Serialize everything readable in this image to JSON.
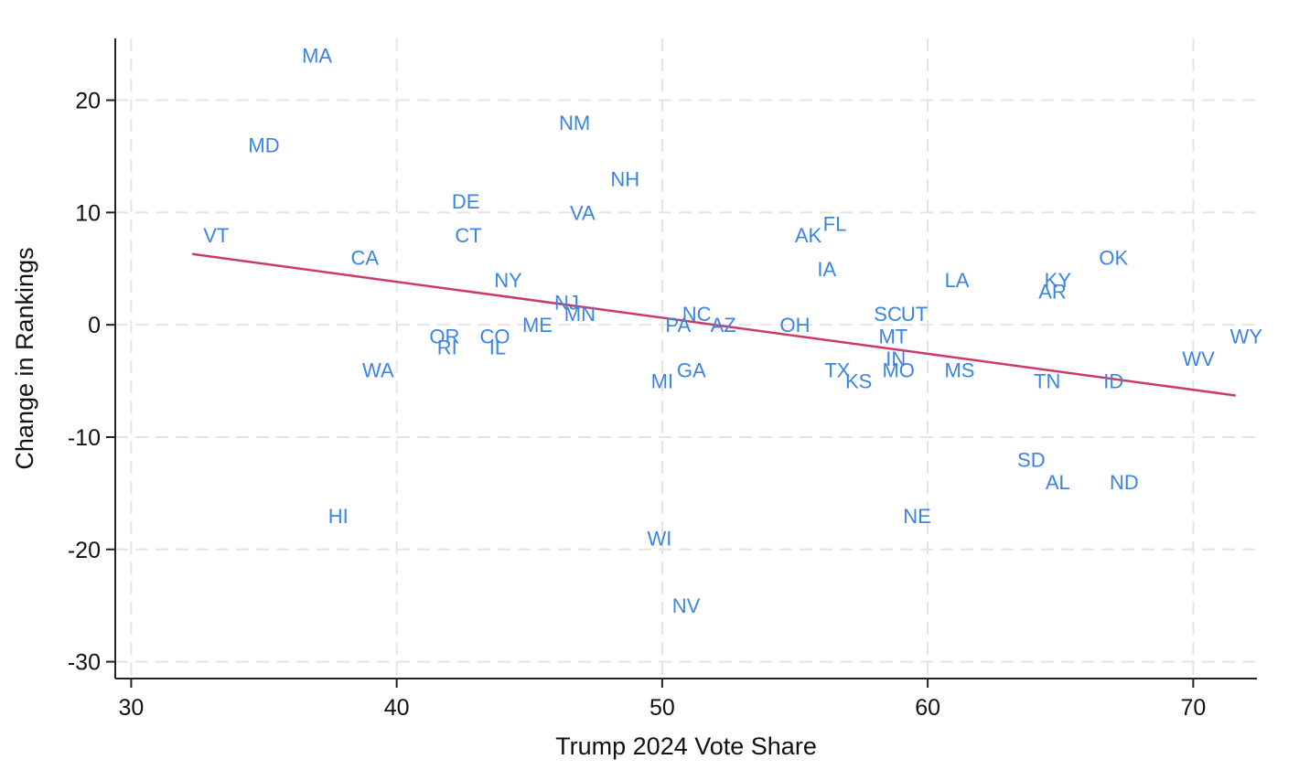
{
  "chart_data": {
    "type": "scatter",
    "xlabel": "Trump 2024 Vote Share",
    "ylabel": "Change in Rankings",
    "xlim": [
      29.4,
      72.4
    ],
    "ylim": [
      -31.5,
      25.5
    ],
    "xticks": [
      30,
      40,
      50,
      60,
      70
    ],
    "yticks": [
      20,
      10,
      0,
      -10,
      -20,
      -30
    ],
    "grid": true,
    "point_color": "#3b84e3",
    "fit_line_color": "#cc3a6a",
    "points": [
      {
        "label": "MA",
        "x": 37.0,
        "y": 24
      },
      {
        "label": "MD",
        "x": 35.0,
        "y": 16
      },
      {
        "label": "NM",
        "x": 46.7,
        "y": 18
      },
      {
        "label": "NH",
        "x": 48.6,
        "y": 13
      },
      {
        "label": "DE",
        "x": 42.6,
        "y": 11
      },
      {
        "label": "VA",
        "x": 47.0,
        "y": 10
      },
      {
        "label": "VT",
        "x": 33.2,
        "y": 8
      },
      {
        "label": "CT",
        "x": 42.7,
        "y": 8
      },
      {
        "label": "AK",
        "x": 55.5,
        "y": 8
      },
      {
        "label": "FL",
        "x": 56.5,
        "y": 9
      },
      {
        "label": "CA",
        "x": 38.8,
        "y": 6
      },
      {
        "label": "OK",
        "x": 67.0,
        "y": 6
      },
      {
        "label": "IA",
        "x": 56.2,
        "y": 5
      },
      {
        "label": "NY",
        "x": 44.2,
        "y": 4
      },
      {
        "label": "LA",
        "x": 61.1,
        "y": 4
      },
      {
        "label": "KY",
        "x": 64.9,
        "y": 4
      },
      {
        "label": "AR",
        "x": 64.7,
        "y": 3
      },
      {
        "label": "NJ",
        "x": 46.4,
        "y": 2
      },
      {
        "label": "MN",
        "x": 46.9,
        "y": 1
      },
      {
        "label": "NC",
        "x": 51.3,
        "y": 1
      },
      {
        "label": "SC",
        "x": 58.5,
        "y": 1
      },
      {
        "label": "UT",
        "x": 59.5,
        "y": 1
      },
      {
        "label": "ME",
        "x": 45.3,
        "y": 0
      },
      {
        "label": "PA",
        "x": 50.6,
        "y": 0
      },
      {
        "label": "AZ",
        "x": 52.3,
        "y": 0
      },
      {
        "label": "OH",
        "x": 55.0,
        "y": 0
      },
      {
        "label": "OR",
        "x": 41.8,
        "y": -1
      },
      {
        "label": "CO",
        "x": 43.7,
        "y": -1
      },
      {
        "label": "MT",
        "x": 58.7,
        "y": -1
      },
      {
        "label": "WY",
        "x": 72.0,
        "y": -1
      },
      {
        "label": "RI",
        "x": 41.9,
        "y": -2
      },
      {
        "label": "IL",
        "x": 43.8,
        "y": -2
      },
      {
        "label": "IN",
        "x": 58.8,
        "y": -3
      },
      {
        "label": "WV",
        "x": 70.2,
        "y": -3
      },
      {
        "label": "WA",
        "x": 39.3,
        "y": -4
      },
      {
        "label": "GA",
        "x": 51.1,
        "y": -4
      },
      {
        "label": "TX",
        "x": 56.6,
        "y": -4
      },
      {
        "label": "MO",
        "x": 58.9,
        "y": -4
      },
      {
        "label": "MS",
        "x": 61.2,
        "y": -4
      },
      {
        "label": "MI",
        "x": 50.0,
        "y": -5
      },
      {
        "label": "KS",
        "x": 57.4,
        "y": -5
      },
      {
        "label": "TN",
        "x": 64.5,
        "y": -5
      },
      {
        "label": "ID",
        "x": 67.0,
        "y": -5
      },
      {
        "label": "SD",
        "x": 63.9,
        "y": -12
      },
      {
        "label": "AL",
        "x": 64.9,
        "y": -14
      },
      {
        "label": "ND",
        "x": 67.4,
        "y": -14
      },
      {
        "label": "HI",
        "x": 37.8,
        "y": -17
      },
      {
        "label": "NE",
        "x": 59.6,
        "y": -17
      },
      {
        "label": "WI",
        "x": 49.9,
        "y": -19
      },
      {
        "label": "NV",
        "x": 50.9,
        "y": -25
      }
    ],
    "fit_line": {
      "x": [
        32.3,
        71.6
      ],
      "y": [
        6.3,
        -6.3
      ]
    }
  }
}
